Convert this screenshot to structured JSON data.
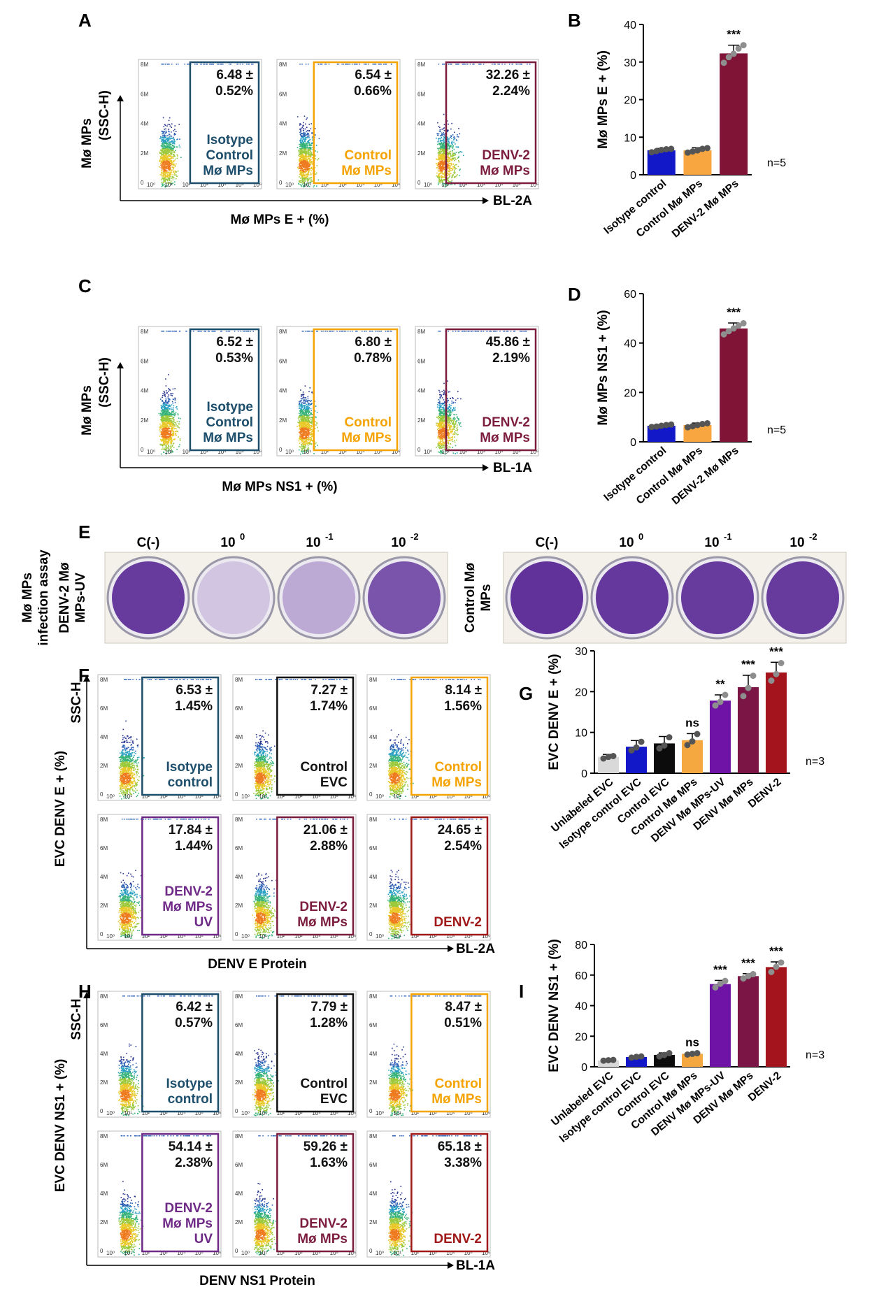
{
  "colors": {
    "teal": "#1d4e6b",
    "orange": "#f5a300",
    "maroon": "#7c1d3f",
    "black": "#111111",
    "purple": "#6e2a86",
    "red": "#a01818",
    "bar_blue": "#1218c8",
    "bar_orange": "#f7a640",
    "bar_maroon": "#7f1437",
    "bar_grey": "#d9d9d9",
    "bar_black": "#0c0c0c",
    "bar_orange2": "#f5a740",
    "bar_purple": "#6f12a6",
    "bar_maroon2": "#7a1546",
    "bar_red": "#a4141c",
    "crystal_violet": "#5a2a96",
    "crystal_light": "#dcd3e8",
    "plate_bg": "#f4f1ea"
  },
  "panels": {
    "A": {
      "letter": "A",
      "ylabel_line1": "Mø MPs",
      "ylabel_line2": "(SSC-H)",
      "xlabel": "Mø MPs E + (%)",
      "xchannel": "BL-2A",
      "plots": [
        {
          "pct": "6.48 ±",
          "sd": "0.52%",
          "l1": "Isotype",
          "l2": "Control",
          "l3": "Mø MPs",
          "color": "teal"
        },
        {
          "pct": "6.54 ±",
          "sd": "0.66%",
          "l1": "",
          "l2": "Control",
          "l3": "Mø MPs",
          "color": "orange"
        },
        {
          "pct": "32.26 ±",
          "sd": "2.24%",
          "l1": "",
          "l2": "DENV-2",
          "l3": "Mø MPs",
          "color": "maroon"
        }
      ]
    },
    "C": {
      "letter": "C",
      "ylabel_line1": "Mø MPs",
      "ylabel_line2": "(SSC-H)",
      "xlabel": "Mø MPs NS1 + (%)",
      "xchannel": "BL-1A",
      "plots": [
        {
          "pct": "6.52 ±",
          "sd": "0.53%",
          "l1": "Isotype",
          "l2": "Control",
          "l3": "Mø MPs",
          "color": "teal"
        },
        {
          "pct": "6.80 ±",
          "sd": "0.78%",
          "l1": "",
          "l2": "Control",
          "l3": "Mø MPs",
          "color": "orange"
        },
        {
          "pct": "45.86 ±",
          "sd": "2.19%",
          "l1": "",
          "l2": "DENV-2",
          "l3": "Mø MPs",
          "color": "maroon"
        }
      ]
    },
    "E": {
      "letter": "E",
      "ylabel_line1": "Mø MPs",
      "ylabel_line2": "infection assay",
      "group1_line1": "DENV-2 Mø",
      "group1_line2": "MPs-UV",
      "group2_line1": "Control Mø",
      "group2_line2": "MPs",
      "plate1": [
        {
          "label": "C(-)",
          "base": "10",
          "exp": "",
          "fill": 0.9
        },
        {
          "label": "",
          "base": "10",
          "exp": "0",
          "fill": 0.08
        },
        {
          "label": "",
          "base": "10",
          "exp": "-1",
          "fill": 0.25
        },
        {
          "label": "",
          "base": "10",
          "exp": "-2",
          "fill": 0.75
        }
      ],
      "plate2": [
        {
          "label": "C(-)",
          "base": "10",
          "exp": "",
          "fill": 0.95
        },
        {
          "label": "",
          "base": "10",
          "exp": "0",
          "fill": 0.92
        },
        {
          "label": "",
          "base": "10",
          "exp": "-1",
          "fill": 0.9
        },
        {
          "label": "",
          "base": "10",
          "exp": "-2",
          "fill": 0.9
        }
      ]
    },
    "F": {
      "letter": "F",
      "ylabel": "EVC DENV  E + (%)",
      "yaxis": "SSC-H",
      "xlabel": "DENV E Protein",
      "xchannel": "BL-2A",
      "plots": [
        {
          "pct": "6.53 ±",
          "sd": "1.45%",
          "l1": "",
          "l2": "Isotype",
          "l3": "control",
          "color": "teal"
        },
        {
          "pct": "7.27 ±",
          "sd": "1.74%",
          "l1": "",
          "l2": "Control",
          "l3": "EVC",
          "color": "black"
        },
        {
          "pct": "8.14 ±",
          "sd": "1.56%",
          "l1": "",
          "l2": "Control",
          "l3": "Mø MPs",
          "color": "orange"
        },
        {
          "pct": "17.84 ±",
          "sd": "1.44%",
          "l1": "DENV-2",
          "l2": "Mø MPs",
          "l3": "UV",
          "color": "purple"
        },
        {
          "pct": "21.06 ±",
          "sd": "2.88%",
          "l1": "",
          "l2": "DENV-2",
          "l3": "Mø MPs",
          "color": "maroon"
        },
        {
          "pct": "24.65 ±",
          "sd": "2.54%",
          "l1": "",
          "l2": "",
          "l3": "DENV-2",
          "color": "red"
        }
      ]
    },
    "H": {
      "letter": "H",
      "ylabel": "EVC DENV  NS1 + (%)",
      "yaxis": "SSC-H",
      "xlabel": "DENV NS1 Protein",
      "xchannel": "BL-1A",
      "plots": [
        {
          "pct": "6.42 ±",
          "sd": "0.57%",
          "l1": "",
          "l2": "Isotype",
          "l3": "control",
          "color": "teal"
        },
        {
          "pct": "7.79 ±",
          "sd": "1.28%",
          "l1": "",
          "l2": "Control",
          "l3": "EVC",
          "color": "black"
        },
        {
          "pct": "8.47 ±",
          "sd": "0.51%",
          "l1": "",
          "l2": "Control",
          "l3": "Mø MPs",
          "color": "orange"
        },
        {
          "pct": "54.14 ±",
          "sd": "2.38%",
          "l1": "DENV-2",
          "l2": "Mø MPs",
          "l3": "UV",
          "color": "purple"
        },
        {
          "pct": "59.26 ±",
          "sd": "1.63%",
          "l1": "",
          "l2": "DENV-2",
          "l3": "Mø MPs",
          "color": "maroon"
        },
        {
          "pct": "65.18 ±",
          "sd": "3.38%",
          "l1": "",
          "l2": "",
          "l3": "DENV-2",
          "color": "red"
        }
      ]
    }
  },
  "chart_data": [
    {
      "panel": "B",
      "type": "bar",
      "categories": [
        "Isotype control",
        "Control Mø MPs",
        "DENV-2 Mø MPs"
      ],
      "values": [
        6.5,
        6.5,
        32.3
      ],
      "errors": [
        0.5,
        0.7,
        2.2
      ],
      "points": [
        [
          6.0,
          6.3,
          6.6,
          6.8,
          6.9
        ],
        [
          5.9,
          6.2,
          6.5,
          6.9,
          7.1
        ],
        [
          29.8,
          31.3,
          32.2,
          33.6,
          34.5
        ]
      ],
      "bar_colors": [
        "bar_blue",
        "bar_orange",
        "bar_maroon"
      ],
      "significance": [
        "",
        "",
        "***"
      ],
      "ylabel": "Mø MPs E + (%)",
      "ylim": [
        0,
        40
      ],
      "yticks": [
        0,
        10,
        20,
        30,
        40
      ],
      "n_label": "n=5"
    },
    {
      "panel": "D",
      "type": "bar",
      "categories": [
        "Isotype control",
        "Control Mø MPs",
        "DENV-2 Mø MPs"
      ],
      "values": [
        6.5,
        6.8,
        45.9
      ],
      "errors": [
        0.5,
        0.8,
        2.2
      ],
      "points": [
        [
          6.0,
          6.2,
          6.5,
          6.8,
          7.0
        ],
        [
          5.9,
          6.3,
          6.8,
          7.2,
          7.5
        ],
        [
          43.5,
          44.8,
          45.9,
          47.0,
          48.0
        ]
      ],
      "bar_colors": [
        "bar_blue",
        "bar_orange",
        "bar_maroon"
      ],
      "significance": [
        "",
        "",
        "***"
      ],
      "ylabel": "Mø MPs NS1 + (%)",
      "ylim": [
        0,
        60
      ],
      "yticks": [
        0,
        20,
        40,
        60
      ],
      "n_label": "n=5"
    },
    {
      "panel": "G",
      "type": "bar",
      "categories": [
        "Unlabeled EVC",
        "Isotype control EVC",
        "Control EVC",
        "Control Mø MPs",
        "DENV Mø MPs-UV",
        "DENV Mø MPs",
        "DENV-2"
      ],
      "values": [
        4.0,
        6.5,
        7.3,
        8.1,
        17.8,
        21.1,
        24.7
      ],
      "errors": [
        0.6,
        1.5,
        1.7,
        1.6,
        1.4,
        2.9,
        2.5
      ],
      "points": [
        [
          3.6,
          4.0,
          4.2
        ],
        [
          5.6,
          6.3,
          7.7
        ],
        [
          6.1,
          6.8,
          8.8
        ],
        [
          6.9,
          7.8,
          9.6
        ],
        [
          16.6,
          17.5,
          19.2
        ],
        [
          18.9,
          20.9,
          23.9
        ],
        [
          22.7,
          24.3,
          27.0
        ]
      ],
      "bar_colors": [
        "bar_grey",
        "bar_blue",
        "bar_black",
        "bar_orange2",
        "bar_purple",
        "bar_maroon2",
        "bar_red"
      ],
      "significance": [
        "",
        "",
        "",
        "ns",
        "**",
        "***",
        "***"
      ],
      "ylabel": "EVC DENV  E + (%)",
      "ylim": [
        0,
        30
      ],
      "yticks": [
        0,
        10,
        20,
        30
      ],
      "n_label": "n=3"
    },
    {
      "panel": "I",
      "type": "bar",
      "categories": [
        "Unlabeled EVC",
        "Isotype control EVC",
        "Control EVC",
        "Control Mø MPs",
        "DENV Mø MPs-UV",
        "DENV Mø MPs",
        "DENV-2"
      ],
      "values": [
        4.2,
        6.4,
        7.8,
        8.5,
        54.1,
        59.3,
        65.2
      ],
      "errors": [
        0.6,
        0.6,
        1.3,
        0.5,
        2.4,
        1.6,
        3.4
      ],
      "points": [
        [
          4.0,
          4.3,
          4.5
        ],
        [
          6.0,
          6.5,
          6.8
        ],
        [
          6.8,
          7.7,
          8.9
        ],
        [
          8.0,
          8.5,
          8.9
        ],
        [
          51.9,
          54.3,
          56.2
        ],
        [
          57.8,
          59.4,
          60.6
        ],
        [
          62.0,
          65.4,
          68.2
        ]
      ],
      "bar_colors": [
        "bar_grey",
        "bar_blue",
        "bar_black",
        "bar_orange2",
        "bar_purple",
        "bar_maroon2",
        "bar_red"
      ],
      "significance": [
        "",
        "",
        "",
        "ns",
        "***",
        "***",
        "***"
      ],
      "ylabel": "EVC DENV  NS1 + (%)",
      "ylim": [
        0,
        80
      ],
      "yticks": [
        0,
        20,
        40,
        60,
        80
      ],
      "n_label": "n=3"
    }
  ],
  "letters": {
    "B": "B",
    "D": "D",
    "G": "G",
    "I": "I"
  }
}
